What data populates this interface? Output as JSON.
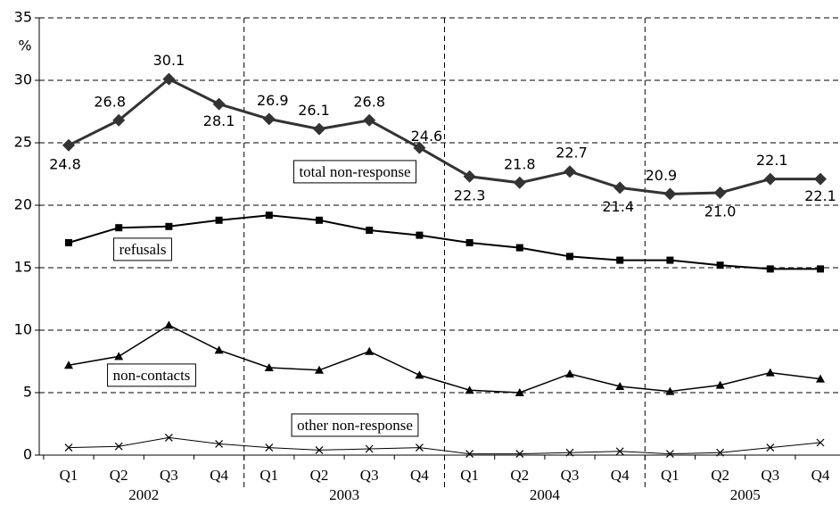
{
  "chart_data": {
    "type": "line",
    "y_label": "%",
    "categories": [
      "Q1",
      "Q2",
      "Q3",
      "Q4",
      "Q1",
      "Q2",
      "Q3",
      "Q4",
      "Q1",
      "Q2",
      "Q3",
      "Q4",
      "Q1",
      "Q2",
      "Q3",
      "Q4"
    ],
    "years": [
      "2002",
      "2003",
      "2004",
      "2005"
    ],
    "ylim": [
      0,
      35
    ],
    "yticks": [
      0,
      5,
      10,
      15,
      20,
      25,
      30,
      35
    ],
    "grid": true,
    "series": [
      {
        "name": "total non-response",
        "color": "#333333",
        "marker": "diamond",
        "values": [
          24.8,
          26.8,
          30.1,
          28.1,
          26.9,
          26.1,
          26.8,
          24.6,
          22.3,
          21.8,
          22.7,
          21.4,
          20.9,
          21.0,
          22.1,
          22.1
        ],
        "value_labels": [
          "24.8",
          "26.8",
          "30.1",
          "28.1",
          "26.9",
          "26.1",
          "26.8",
          "24.6",
          "22.3",
          "21.8",
          "22.7",
          "21.4",
          "20.9",
          "21.0",
          "22.1",
          "22.1"
        ]
      },
      {
        "name": "refusals",
        "color": "#000000",
        "marker": "square",
        "values": [
          17.0,
          18.2,
          18.3,
          18.8,
          19.2,
          18.8,
          18.0,
          17.6,
          17.0,
          16.6,
          15.9,
          15.6,
          15.6,
          15.2,
          14.9,
          14.9
        ]
      },
      {
        "name": "non-contacts",
        "color": "#000000",
        "marker": "triangle",
        "values": [
          7.2,
          7.9,
          10.4,
          8.4,
          7.0,
          6.8,
          8.3,
          6.4,
          5.2,
          5.0,
          6.5,
          5.5,
          5.1,
          5.6,
          6.6,
          6.1
        ]
      },
      {
        "name": "other non-response",
        "color": "#000000",
        "marker": "x",
        "values": [
          0.6,
          0.7,
          1.4,
          0.9,
          0.6,
          0.4,
          0.5,
          0.6,
          0.1,
          0.1,
          0.2,
          0.3,
          0.1,
          0.2,
          0.6,
          1.0
        ]
      }
    ]
  }
}
